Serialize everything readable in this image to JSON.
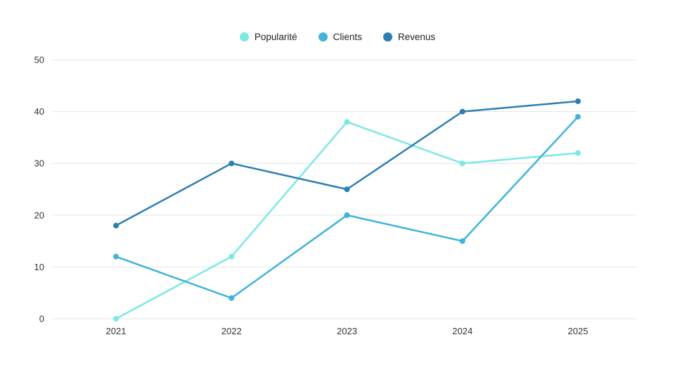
{
  "chart_data": {
    "type": "line",
    "categories": [
      "2021",
      "2022",
      "2023",
      "2024",
      "2025"
    ],
    "series": [
      {
        "name": "Popularité",
        "color": "#7BE9E3",
        "values": [
          0,
          12,
          38,
          30,
          32
        ]
      },
      {
        "name": "Clients",
        "color": "#3EB4DA",
        "values": [
          12,
          4,
          20,
          15,
          39
        ]
      },
      {
        "name": "Revenus",
        "color": "#2E7EB3",
        "values": [
          18,
          30,
          25,
          40,
          42
        ]
      }
    ],
    "title": "",
    "xlabel": "",
    "ylabel": "",
    "ylim": [
      0,
      50
    ],
    "y_ticks": [
      0,
      10,
      20,
      30,
      40,
      50
    ],
    "grid": true,
    "legend_position": "top"
  },
  "colors": {
    "grid": "#E3E3E3",
    "axis": "#DCDCDC",
    "tick_text": "#333333",
    "background": "#FFFFFF"
  }
}
